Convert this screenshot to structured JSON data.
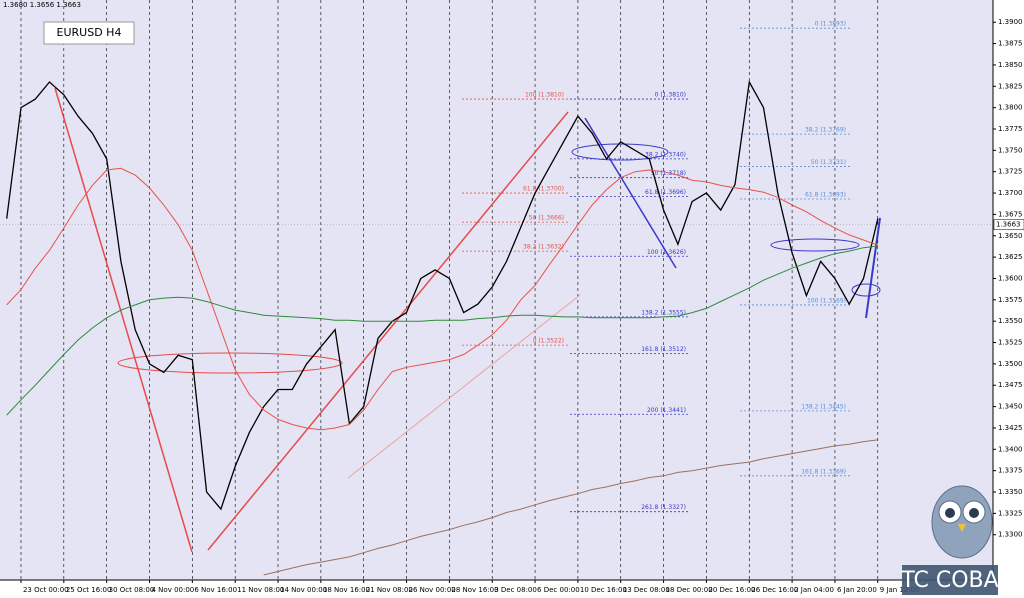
{
  "chart_data": {
    "type": "line",
    "title": "EURUSD H4",
    "ohlc_info": "1.3680 1.3656 1.3663",
    "watermark": "TC COBA",
    "last_price": {
      "value": 1.3663,
      "label": "1.3663"
    },
    "categories": [
      null,
      "23 Oct 00:00",
      null,
      null,
      "25 Oct 16:00",
      null,
      null,
      "30 Oct 08:00",
      null,
      null,
      "4 Nov 00:00",
      null,
      null,
      "6 Nov 16:00",
      null,
      null,
      "11 Nov 08:00",
      null,
      null,
      "14 Nov 00:00",
      null,
      null,
      "18 Nov 16:00",
      null,
      null,
      "21 Nov 08:00",
      null,
      null,
      "26 Nov 00:00",
      null,
      null,
      "28 Nov 16:00",
      null,
      null,
      "3 Dec 08:00",
      null,
      null,
      "6 Dec 00:00",
      null,
      null,
      "10 Dec 16:00",
      null,
      null,
      "13 Dec 08:00",
      null,
      null,
      "18 Dec 00:00",
      null,
      null,
      "20 Dec 16:00",
      null,
      null,
      "26 Dec 16:00",
      null,
      null,
      "2 Jan 04:00",
      null,
      null,
      "6 Jan 20:00",
      null,
      null,
      "9 Jan 12:00"
    ],
    "series": [
      {
        "color": "#000000",
        "values": [
          1.367,
          1.38,
          1.381,
          1.383,
          1.3815,
          1.379,
          1.377,
          1.374,
          1.362,
          1.354,
          1.35,
          1.349,
          1.351,
          1.3505,
          1.335,
          1.333,
          1.338,
          1.342,
          1.345,
          1.347,
          1.347,
          1.35,
          1.352,
          1.354,
          1.343,
          1.345,
          1.353,
          1.355,
          1.356,
          1.36,
          1.361,
          1.36,
          1.356,
          1.357,
          1.359,
          1.362,
          1.366,
          1.37,
          1.373,
          1.376,
          1.379,
          1.377,
          1.374,
          1.376,
          1.375,
          1.374,
          1.368,
          1.364,
          1.369,
          1.37,
          1.368,
          1.371,
          1.383,
          1.38,
          1.37,
          1.363,
          1.358,
          1.362,
          1.36,
          1.357,
          1.36,
          1.367
        ]
      },
      {
        "color": "#e8534a",
        "values": [
          1.3569,
          1.3587,
          1.3612,
          1.3633,
          1.3659,
          1.3686,
          1.3709,
          1.3727,
          1.3729,
          1.3721,
          1.3706,
          1.3686,
          1.3663,
          1.3633,
          1.3587,
          1.354,
          1.3493,
          1.3464,
          1.3446,
          1.3435,
          1.3429,
          1.3425,
          1.3423,
          1.3425,
          1.3429,
          1.3446,
          1.347,
          1.3491,
          1.3496,
          1.3499,
          1.3502,
          1.3505,
          1.3511,
          1.3522,
          1.3534,
          1.3551,
          1.3575,
          1.3592,
          1.3616,
          1.3639,
          1.3663,
          1.3686,
          1.3704,
          1.3718,
          1.3725,
          1.3727,
          1.3725,
          1.3721,
          1.3715,
          1.3713,
          1.3709,
          1.3706,
          1.3704,
          1.3701,
          1.3695,
          1.3686,
          1.3678,
          1.3668,
          1.3659,
          1.3651,
          1.3645,
          1.3639
        ]
      },
      {
        "color": "#2e8b3a",
        "values": [
          1.344,
          1.3458,
          1.3475,
          1.3493,
          1.3511,
          1.3528,
          1.3542,
          1.3554,
          1.3563,
          1.3569,
          1.3575,
          1.3577,
          1.3578,
          1.3577,
          1.3573,
          1.3568,
          1.3563,
          1.356,
          1.3557,
          1.3556,
          1.3555,
          1.3554,
          1.3553,
          1.3551,
          1.3551,
          1.355,
          1.355,
          1.355,
          1.355,
          1.355,
          1.3551,
          1.3551,
          1.3551,
          1.3553,
          1.3554,
          1.3556,
          1.3557,
          1.3557,
          1.3556,
          1.3555,
          1.3555,
          1.3554,
          1.3554,
          1.3554,
          1.3554,
          1.3554,
          1.3555,
          1.3556,
          1.356,
          1.3565,
          1.3573,
          1.3581,
          1.3589,
          1.3598,
          1.3605,
          1.3612,
          1.3618,
          1.3624,
          1.3629,
          1.3632,
          1.3636,
          1.3638
        ]
      },
      {
        "color": "#a0705a",
        "values": [
          null,
          null,
          null,
          null,
          null,
          null,
          null,
          null,
          null,
          null,
          null,
          null,
          null,
          null,
          null,
          null,
          null,
          null,
          1.3253,
          1.3257,
          1.3261,
          1.3265,
          1.3268,
          1.3271,
          1.3274,
          1.3279,
          1.3284,
          1.3288,
          1.3293,
          1.3298,
          1.3302,
          1.3306,
          1.3311,
          1.3315,
          1.332,
          1.3326,
          1.333,
          1.3335,
          1.334,
          1.3344,
          1.3348,
          1.3353,
          1.3356,
          1.336,
          1.3363,
          1.3367,
          1.3369,
          1.3373,
          1.3375,
          1.3378,
          1.3381,
          1.3383,
          1.3385,
          1.3389,
          1.3392,
          1.3395,
          1.3398,
          1.3401,
          1.3404,
          1.3406,
          1.3409,
          1.3411
        ]
      }
    ],
    "ylim": [
      1.3247,
      1.3926
    ],
    "yticks": [
      {
        "value": 1.33,
        "label": "1.3300"
      },
      {
        "value": 1.3325,
        "label": "1.3325"
      },
      {
        "value": 1.335,
        "label": "1.3350"
      },
      {
        "value": 1.3375,
        "label": "1.3375"
      },
      {
        "value": 1.34,
        "label": "1.3400"
      },
      {
        "value": 1.3425,
        "label": "1.3425"
      },
      {
        "value": 1.345,
        "label": "1.3450"
      },
      {
        "value": 1.3475,
        "label": "1.3475"
      },
      {
        "value": 1.35,
        "label": "1.3500"
      },
      {
        "value": 1.3525,
        "label": "1.3525"
      },
      {
        "value": 1.355,
        "label": "1.3550"
      },
      {
        "value": 1.3575,
        "label": "1.3575"
      },
      {
        "value": 1.36,
        "label": "1.3600"
      },
      {
        "value": 1.3625,
        "label": "1.3625"
      },
      {
        "value": 1.365,
        "label": "1.3650"
      },
      {
        "value": 1.3675,
        "label": "1.3675"
      },
      {
        "value": 1.37,
        "label": "1.3700"
      },
      {
        "value": 1.3725,
        "label": "1.3725"
      },
      {
        "value": 1.375,
        "label": "1.3750"
      },
      {
        "value": 1.3775,
        "label": "1.3775"
      },
      {
        "value": 1.38,
        "label": "1.3800"
      },
      {
        "value": 1.3825,
        "label": "1.3825"
      },
      {
        "value": 1.385,
        "label": "1.3850"
      },
      {
        "value": 1.3875,
        "label": "1.3875"
      },
      {
        "value": 1.39,
        "label": "1.3900"
      }
    ],
    "fibonacci": [
      {
        "color": "#e8534a",
        "levels": [
          {
            "value": 1.381,
            "label": "100 (1.3810)"
          },
          {
            "value": 1.37,
            "label": "61.8 (1.3700)"
          },
          {
            "value": 1.3666,
            "label": "50 (1.3666)"
          },
          {
            "value": 1.3632,
            "label": "38.2 (1.3632)"
          },
          {
            "value": 1.3522,
            "label": "0 (1.3522)"
          }
        ]
      },
      {
        "color": "#3a3ac8",
        "levels": [
          {
            "value": 1.381,
            "label": "0 (1.3810)"
          },
          {
            "value": 1.374,
            "label": "38.2 (1.3740)"
          },
          {
            "value": 1.3718,
            "label": "50 (1.3718)"
          },
          {
            "value": 1.3696,
            "label": "61.8 (1.3696)"
          },
          {
            "value": 1.3626,
            "label": "100 (1.3626)"
          },
          {
            "value": 1.3555,
            "label": "138.2 (1.3555)"
          },
          {
            "value": 1.3512,
            "label": "161.8 (1.3512)"
          },
          {
            "value": 1.3441,
            "label": "200 (1.3441)"
          },
          {
            "value": 1.3327,
            "label": "261.8 (1.3327)"
          }
        ]
      },
      {
        "color": "#5a8fd8",
        "levels": [
          {
            "value": 1.3893,
            "label": "0 (1.3893)"
          },
          {
            "value": 1.3769,
            "label": "38.2 (1.3769)"
          },
          {
            "value": 1.3731,
            "label": "50 (1.3731)"
          },
          {
            "value": 1.3693,
            "label": "61.8 (1.3693)"
          },
          {
            "value": 1.3569,
            "label": "100 (1.3569)"
          },
          {
            "value": 1.3445,
            "label": "138.2 (1.3445)"
          },
          {
            "value": 1.3369,
            "label": "161.8 (1.3369)"
          }
        ]
      }
    ]
  }
}
